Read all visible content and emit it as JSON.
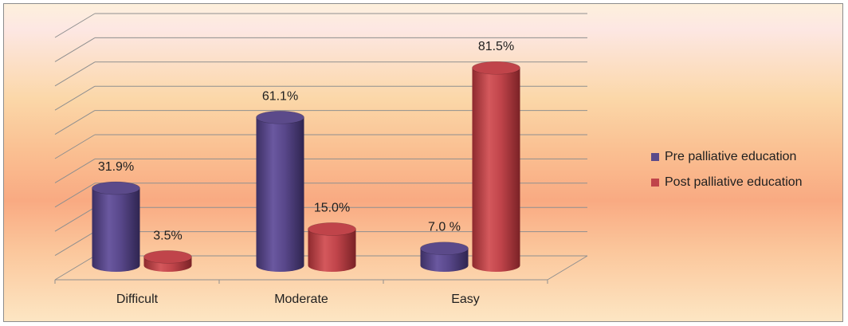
{
  "chart_data": {
    "type": "bar",
    "title": "",
    "xlabel": "",
    "ylabel": "",
    "categories": [
      "Difficult",
      "Moderate",
      "Easy"
    ],
    "series": [
      {
        "name": "Pre palliative education",
        "values": [
          31.9,
          61.1,
          7.0
        ],
        "labels": [
          "31.9%",
          "61.1%",
          "7.0 %"
        ],
        "color": "#5b4a8a"
      },
      {
        "name": "Post palliative education",
        "values": [
          3.5,
          15.0,
          81.5
        ],
        "labels": [
          "3.5%",
          "15.0%",
          "81.5%"
        ],
        "color": "#c0444a"
      }
    ],
    "ylim": [
      0,
      100
    ],
    "grid": true,
    "legend_position": "right",
    "style": "3d-cylinder"
  }
}
